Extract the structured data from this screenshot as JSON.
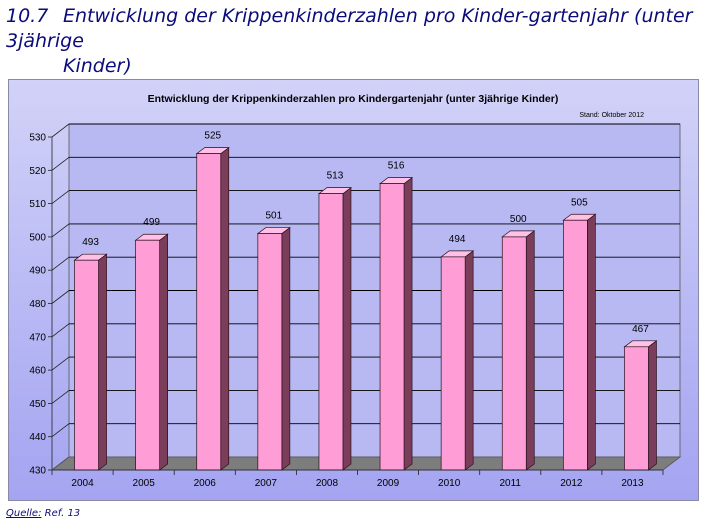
{
  "section": {
    "number": "10.7",
    "title_line1": "Entwicklung der Krippenkinderzahlen pro Kinder-gartenjahr (unter 3jährige",
    "title_line2": "Kinder)"
  },
  "source": {
    "label": "Quelle:",
    "ref": "Ref. 13"
  },
  "chart_data": {
    "type": "bar",
    "title": "Entwicklung der Krippenkinderzahlen pro Kindergartenjahr (unter 3jährige Kinder)",
    "note": "Stand: Oktober 2012",
    "categories": [
      "2004",
      "2005",
      "2006",
      "2007",
      "2008",
      "2009",
      "2010",
      "2011",
      "2012",
      "2013"
    ],
    "values": [
      493,
      499,
      525,
      501,
      513,
      516,
      494,
      500,
      505,
      467
    ],
    "ylim": [
      430,
      530
    ],
    "yticks": [
      430,
      440,
      450,
      460,
      470,
      480,
      490,
      500,
      510,
      520,
      530
    ],
    "grid": true,
    "legend": "none",
    "colors": {
      "bar_front": "#ff9ed6",
      "bar_top": "#ffc2e6",
      "bar_side": "#7a3d5a",
      "floor": "#7d7d7d",
      "wall": "#b8b9f3",
      "gridline": "#000000"
    }
  }
}
